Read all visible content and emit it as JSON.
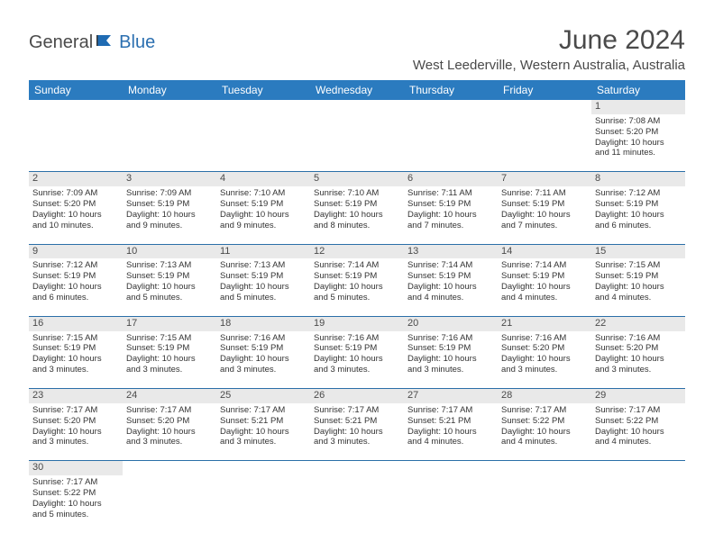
{
  "logo": {
    "text1": "General",
    "text2": "Blue"
  },
  "title": "June 2024",
  "location": "West Leederville, Western Australia, Australia",
  "colors": {
    "header_bg": "#2b7bbf",
    "header_text": "#ffffff",
    "daynum_bg": "#e9e9e9",
    "row_divider": "#2b6fa8",
    "logo_gray": "#4a4a4a",
    "logo_blue": "#2b6fb0",
    "text": "#333333",
    "background": "#ffffff"
  },
  "weekdays": [
    "Sunday",
    "Monday",
    "Tuesday",
    "Wednesday",
    "Thursday",
    "Friday",
    "Saturday"
  ],
  "weeks": [
    {
      "nums": [
        "",
        "",
        "",
        "",
        "",
        "",
        "1"
      ],
      "cells": [
        null,
        null,
        null,
        null,
        null,
        null,
        {
          "sr": "Sunrise: 7:08 AM",
          "ss": "Sunset: 5:20 PM",
          "d1": "Daylight: 10 hours",
          "d2": "and 11 minutes."
        }
      ]
    },
    {
      "nums": [
        "2",
        "3",
        "4",
        "5",
        "6",
        "7",
        "8"
      ],
      "cells": [
        {
          "sr": "Sunrise: 7:09 AM",
          "ss": "Sunset: 5:20 PM",
          "d1": "Daylight: 10 hours",
          "d2": "and 10 minutes."
        },
        {
          "sr": "Sunrise: 7:09 AM",
          "ss": "Sunset: 5:19 PM",
          "d1": "Daylight: 10 hours",
          "d2": "and 9 minutes."
        },
        {
          "sr": "Sunrise: 7:10 AM",
          "ss": "Sunset: 5:19 PM",
          "d1": "Daylight: 10 hours",
          "d2": "and 9 minutes."
        },
        {
          "sr": "Sunrise: 7:10 AM",
          "ss": "Sunset: 5:19 PM",
          "d1": "Daylight: 10 hours",
          "d2": "and 8 minutes."
        },
        {
          "sr": "Sunrise: 7:11 AM",
          "ss": "Sunset: 5:19 PM",
          "d1": "Daylight: 10 hours",
          "d2": "and 7 minutes."
        },
        {
          "sr": "Sunrise: 7:11 AM",
          "ss": "Sunset: 5:19 PM",
          "d1": "Daylight: 10 hours",
          "d2": "and 7 minutes."
        },
        {
          "sr": "Sunrise: 7:12 AM",
          "ss": "Sunset: 5:19 PM",
          "d1": "Daylight: 10 hours",
          "d2": "and 6 minutes."
        }
      ]
    },
    {
      "nums": [
        "9",
        "10",
        "11",
        "12",
        "13",
        "14",
        "15"
      ],
      "cells": [
        {
          "sr": "Sunrise: 7:12 AM",
          "ss": "Sunset: 5:19 PM",
          "d1": "Daylight: 10 hours",
          "d2": "and 6 minutes."
        },
        {
          "sr": "Sunrise: 7:13 AM",
          "ss": "Sunset: 5:19 PM",
          "d1": "Daylight: 10 hours",
          "d2": "and 5 minutes."
        },
        {
          "sr": "Sunrise: 7:13 AM",
          "ss": "Sunset: 5:19 PM",
          "d1": "Daylight: 10 hours",
          "d2": "and 5 minutes."
        },
        {
          "sr": "Sunrise: 7:14 AM",
          "ss": "Sunset: 5:19 PM",
          "d1": "Daylight: 10 hours",
          "d2": "and 5 minutes."
        },
        {
          "sr": "Sunrise: 7:14 AM",
          "ss": "Sunset: 5:19 PM",
          "d1": "Daylight: 10 hours",
          "d2": "and 4 minutes."
        },
        {
          "sr": "Sunrise: 7:14 AM",
          "ss": "Sunset: 5:19 PM",
          "d1": "Daylight: 10 hours",
          "d2": "and 4 minutes."
        },
        {
          "sr": "Sunrise: 7:15 AM",
          "ss": "Sunset: 5:19 PM",
          "d1": "Daylight: 10 hours",
          "d2": "and 4 minutes."
        }
      ]
    },
    {
      "nums": [
        "16",
        "17",
        "18",
        "19",
        "20",
        "21",
        "22"
      ],
      "cells": [
        {
          "sr": "Sunrise: 7:15 AM",
          "ss": "Sunset: 5:19 PM",
          "d1": "Daylight: 10 hours",
          "d2": "and 3 minutes."
        },
        {
          "sr": "Sunrise: 7:15 AM",
          "ss": "Sunset: 5:19 PM",
          "d1": "Daylight: 10 hours",
          "d2": "and 3 minutes."
        },
        {
          "sr": "Sunrise: 7:16 AM",
          "ss": "Sunset: 5:19 PM",
          "d1": "Daylight: 10 hours",
          "d2": "and 3 minutes."
        },
        {
          "sr": "Sunrise: 7:16 AM",
          "ss": "Sunset: 5:19 PM",
          "d1": "Daylight: 10 hours",
          "d2": "and 3 minutes."
        },
        {
          "sr": "Sunrise: 7:16 AM",
          "ss": "Sunset: 5:19 PM",
          "d1": "Daylight: 10 hours",
          "d2": "and 3 minutes."
        },
        {
          "sr": "Sunrise: 7:16 AM",
          "ss": "Sunset: 5:20 PM",
          "d1": "Daylight: 10 hours",
          "d2": "and 3 minutes."
        },
        {
          "sr": "Sunrise: 7:16 AM",
          "ss": "Sunset: 5:20 PM",
          "d1": "Daylight: 10 hours",
          "d2": "and 3 minutes."
        }
      ]
    },
    {
      "nums": [
        "23",
        "24",
        "25",
        "26",
        "27",
        "28",
        "29"
      ],
      "cells": [
        {
          "sr": "Sunrise: 7:17 AM",
          "ss": "Sunset: 5:20 PM",
          "d1": "Daylight: 10 hours",
          "d2": "and 3 minutes."
        },
        {
          "sr": "Sunrise: 7:17 AM",
          "ss": "Sunset: 5:20 PM",
          "d1": "Daylight: 10 hours",
          "d2": "and 3 minutes."
        },
        {
          "sr": "Sunrise: 7:17 AM",
          "ss": "Sunset: 5:21 PM",
          "d1": "Daylight: 10 hours",
          "d2": "and 3 minutes."
        },
        {
          "sr": "Sunrise: 7:17 AM",
          "ss": "Sunset: 5:21 PM",
          "d1": "Daylight: 10 hours",
          "d2": "and 3 minutes."
        },
        {
          "sr": "Sunrise: 7:17 AM",
          "ss": "Sunset: 5:21 PM",
          "d1": "Daylight: 10 hours",
          "d2": "and 4 minutes."
        },
        {
          "sr": "Sunrise: 7:17 AM",
          "ss": "Sunset: 5:22 PM",
          "d1": "Daylight: 10 hours",
          "d2": "and 4 minutes."
        },
        {
          "sr": "Sunrise: 7:17 AM",
          "ss": "Sunset: 5:22 PM",
          "d1": "Daylight: 10 hours",
          "d2": "and 4 minutes."
        }
      ]
    },
    {
      "nums": [
        "30",
        "",
        "",
        "",
        "",
        "",
        ""
      ],
      "cells": [
        {
          "sr": "Sunrise: 7:17 AM",
          "ss": "Sunset: 5:22 PM",
          "d1": "Daylight: 10 hours",
          "d2": "and 5 minutes."
        },
        null,
        null,
        null,
        null,
        null,
        null
      ]
    }
  ]
}
